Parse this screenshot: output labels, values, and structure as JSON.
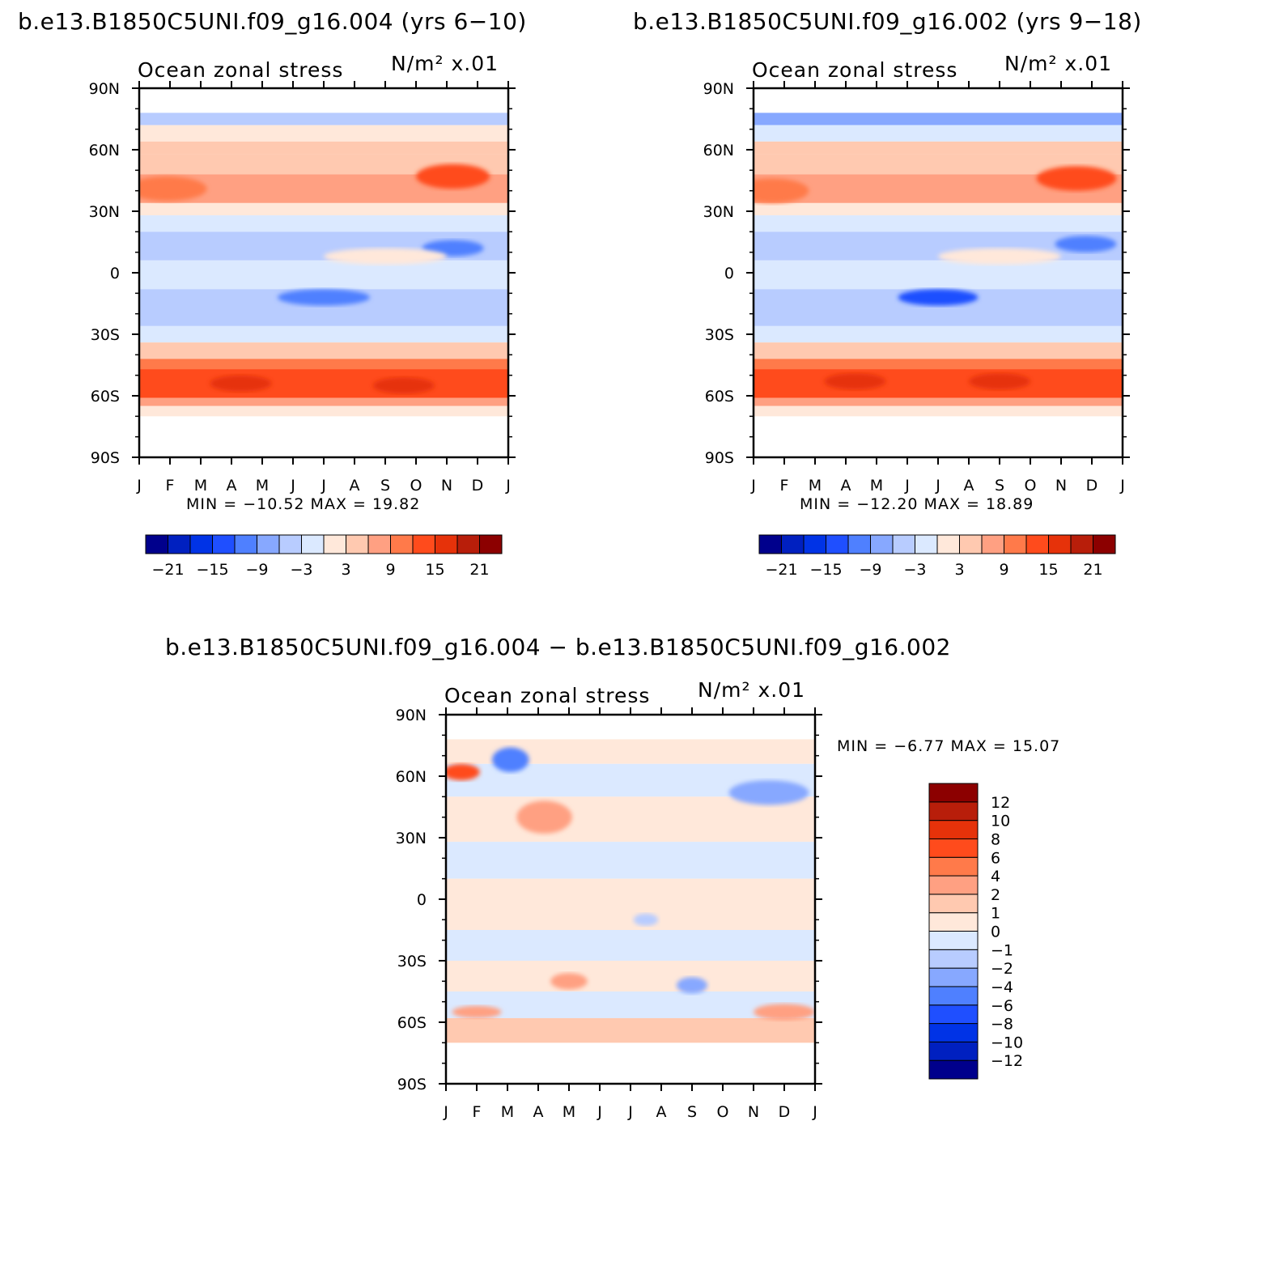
{
  "colors": {
    "scale": [
      "#00008c",
      "#0020c0",
      "#0033e6",
      "#1f4fff",
      "#4f80ff",
      "#87a8ff",
      "#b8ccff",
      "#dbe9ff",
      "#ffe8da",
      "#ffc9b0",
      "#ffa082",
      "#ff7a4a",
      "#ff4b1c",
      "#e6320a",
      "#b81e0a",
      "#8c0000"
    ]
  },
  "chart_data": [
    {
      "type": "heatmap",
      "title": "b.e13.B1850C5UNI.f09_g16.004 (yrs 6−10)",
      "subtitle_left": "Ocean zonal stress",
      "subtitle_right": "N/m² x.01",
      "x": [
        "J",
        "F",
        "M",
        "A",
        "M",
        "J",
        "J",
        "A",
        "S",
        "O",
        "N",
        "D",
        "J"
      ],
      "y": [
        "90N",
        "60N",
        "30N",
        "0",
        "30S",
        "60S",
        "90S"
      ],
      "ylim": [
        -90,
        90
      ],
      "min_max": "MIN = −10.52 MAX =  19.82",
      "min": -10.52,
      "max": 19.82,
      "colorbar_ticks": [
        "−21",
        "−15",
        "−9",
        "−3",
        "3",
        "9",
        "15",
        "21"
      ],
      "colorbar_levels": [
        -21,
        -18,
        -15,
        -12,
        -9,
        -6,
        -3,
        0,
        3,
        6,
        9,
        12,
        15,
        18,
        21
      ],
      "bands": [
        {
          "lat_top": 78,
          "lat_bot": 72,
          "val": -5
        },
        {
          "lat_top": 72,
          "lat_bot": 64,
          "val": 1
        },
        {
          "lat_top": 64,
          "lat_bot": 58,
          "val": 5
        },
        {
          "lat_top": 58,
          "lat_bot": 48,
          "val": 6
        },
        {
          "lat_top": 48,
          "lat_bot": 34,
          "val": 9
        },
        {
          "lat_top": 34,
          "lat_bot": 28,
          "val": 2
        },
        {
          "lat_top": 28,
          "lat_bot": 20,
          "val": -2
        },
        {
          "lat_top": 20,
          "lat_bot": 6,
          "val": -5
        },
        {
          "lat_top": 6,
          "lat_bot": 0,
          "val": -1
        },
        {
          "lat_top": 0,
          "lat_bot": -8,
          "val": -1
        },
        {
          "lat_top": -8,
          "lat_bot": -26,
          "val": -5
        },
        {
          "lat_top": -26,
          "lat_bot": -34,
          "val": -2
        },
        {
          "lat_top": -34,
          "lat_bot": -42,
          "val": 5
        },
        {
          "lat_top": -42,
          "lat_bot": -47,
          "val": 10
        },
        {
          "lat_top": -47,
          "lat_bot": -61,
          "val": 15
        },
        {
          "lat_top": -61,
          "lat_bot": -65,
          "val": 7
        },
        {
          "lat_top": -65,
          "lat_bot": -70,
          "val": 1
        }
      ],
      "blobs": [
        {
          "month": 0.9,
          "lat": 41,
          "rm": 1.3,
          "rl": 6,
          "val": 12
        },
        {
          "month": 10.2,
          "lat": 47,
          "rm": 1.2,
          "rl": 6,
          "val": 15
        },
        {
          "month": 3.3,
          "lat": -54,
          "rm": 1.0,
          "rl": 4,
          "val": 18
        },
        {
          "month": 8.6,
          "lat": -55,
          "rm": 1.0,
          "rl": 4,
          "val": 18
        },
        {
          "month": 10.2,
          "lat": 12,
          "rm": 1.0,
          "rl": 4,
          "val": -9
        },
        {
          "month": 6.0,
          "lat": -12,
          "rm": 1.5,
          "rl": 4,
          "val": -9
        },
        {
          "month": 8.0,
          "lat": 8,
          "rm": 2.0,
          "rl": 4,
          "val": 2
        }
      ]
    },
    {
      "type": "heatmap",
      "title": "b.e13.B1850C5UNI.f09_g16.002 (yrs 9−18)",
      "subtitle_left": "Ocean zonal stress",
      "subtitle_right": "N/m² x.01",
      "x": [
        "J",
        "F",
        "M",
        "A",
        "M",
        "J",
        "J",
        "A",
        "S",
        "O",
        "N",
        "D",
        "J"
      ],
      "y": [
        "90N",
        "60N",
        "30N",
        "0",
        "30S",
        "60S",
        "90S"
      ],
      "ylim": [
        -90,
        90
      ],
      "min_max": "MIN = −12.20 MAX =   18.89",
      "min": -12.2,
      "max": 18.89,
      "colorbar_ticks": [
        "−21",
        "−15",
        "−9",
        "−3",
        "3",
        "9",
        "15",
        "21"
      ],
      "colorbar_levels": [
        -21,
        -18,
        -15,
        -12,
        -9,
        -6,
        -3,
        0,
        3,
        6,
        9,
        12,
        15,
        18,
        21
      ],
      "bands": [
        {
          "lat_top": 78,
          "lat_bot": 72,
          "val": -6
        },
        {
          "lat_top": 72,
          "lat_bot": 64,
          "val": -1
        },
        {
          "lat_top": 64,
          "lat_bot": 58,
          "val": 5
        },
        {
          "lat_top": 58,
          "lat_bot": 48,
          "val": 6
        },
        {
          "lat_top": 48,
          "lat_bot": 34,
          "val": 8
        },
        {
          "lat_top": 34,
          "lat_bot": 28,
          "val": 2
        },
        {
          "lat_top": 28,
          "lat_bot": 20,
          "val": -2
        },
        {
          "lat_top": 20,
          "lat_bot": 6,
          "val": -5
        },
        {
          "lat_top": 6,
          "lat_bot": 0,
          "val": -1
        },
        {
          "lat_top": 0,
          "lat_bot": -8,
          "val": -1
        },
        {
          "lat_top": -8,
          "lat_bot": -26,
          "val": -5
        },
        {
          "lat_top": -26,
          "lat_bot": -34,
          "val": -2
        },
        {
          "lat_top": -34,
          "lat_bot": -42,
          "val": 5
        },
        {
          "lat_top": -42,
          "lat_bot": -47,
          "val": 10
        },
        {
          "lat_top": -47,
          "lat_bot": -61,
          "val": 15
        },
        {
          "lat_top": -61,
          "lat_bot": -65,
          "val": 8
        },
        {
          "lat_top": -65,
          "lat_bot": -70,
          "val": 1
        }
      ],
      "blobs": [
        {
          "month": 0.6,
          "lat": 40,
          "rm": 1.2,
          "rl": 6,
          "val": 12
        },
        {
          "month": 10.5,
          "lat": 46,
          "rm": 1.3,
          "rl": 6,
          "val": 15
        },
        {
          "month": 3.3,
          "lat": -53,
          "rm": 1.0,
          "rl": 4,
          "val": 18
        },
        {
          "month": 8.0,
          "lat": -53,
          "rm": 1.0,
          "rl": 4,
          "val": 18
        },
        {
          "month": 10.8,
          "lat": 14,
          "rm": 1.0,
          "rl": 4,
          "val": -9
        },
        {
          "month": 6.0,
          "lat": -12,
          "rm": 1.3,
          "rl": 4,
          "val": -12
        },
        {
          "month": 8.0,
          "lat": 8,
          "rm": 2.0,
          "rl": 4,
          "val": 2
        }
      ]
    },
    {
      "type": "heatmap",
      "title": "b.e13.B1850C5UNI.f09_g16.004 − b.e13.B1850C5UNI.f09_g16.002",
      "subtitle_left": "Ocean zonal stress",
      "subtitle_right": "N/m² x.01",
      "x": [
        "J",
        "F",
        "M",
        "A",
        "M",
        "J",
        "J",
        "A",
        "S",
        "O",
        "N",
        "D",
        "J"
      ],
      "y": [
        "90N",
        "60N",
        "30N",
        "0",
        "30S",
        "60S",
        "90S"
      ],
      "ylim": [
        -90,
        90
      ],
      "min_max": "MIN =   −6.77 MAX =   15.07",
      "min": -6.77,
      "max": 15.07,
      "colorbar_ticks": [
        "12",
        "10",
        "8",
        "6",
        "4",
        "2",
        "1",
        "0",
        "−1",
        "−2",
        "−4",
        "−6",
        "−8",
        "−10",
        "−12"
      ],
      "colorbar_levels": [
        -12,
        -10,
        -8,
        -6,
        -4,
        -2,
        -1,
        0,
        1,
        2,
        4,
        6,
        8,
        10,
        12
      ],
      "bands": [
        {
          "lat_top": 78,
          "lat_bot": 66,
          "val": 0.5
        },
        {
          "lat_top": 66,
          "lat_bot": 50,
          "val": -0.5
        },
        {
          "lat_top": 50,
          "lat_bot": 28,
          "val": 0.5
        },
        {
          "lat_top": 28,
          "lat_bot": 10,
          "val": -0.5
        },
        {
          "lat_top": 10,
          "lat_bot": -15,
          "val": 0.5
        },
        {
          "lat_top": -15,
          "lat_bot": -30,
          "val": -0.5
        },
        {
          "lat_top": -30,
          "lat_bot": -45,
          "val": 0.5
        },
        {
          "lat_top": -45,
          "lat_bot": -58,
          "val": -0.5
        },
        {
          "lat_top": -58,
          "lat_bot": -70,
          "val": 1.5
        }
      ],
      "blobs": [
        {
          "month": 0.5,
          "lat": 62,
          "rm": 0.6,
          "rl": 4,
          "val": 7
        },
        {
          "month": 2.1,
          "lat": 68,
          "rm": 0.6,
          "rl": 6,
          "val": -5
        },
        {
          "month": 3.2,
          "lat": 40,
          "rm": 0.9,
          "rl": 8,
          "val": 3
        },
        {
          "month": 10.5,
          "lat": 52,
          "rm": 1.3,
          "rl": 6,
          "val": -3
        },
        {
          "month": 8.0,
          "lat": -42,
          "rm": 0.5,
          "rl": 4,
          "val": -3
        },
        {
          "month": 11.0,
          "lat": -55,
          "rm": 1.0,
          "rl": 4,
          "val": 3
        },
        {
          "month": 1.0,
          "lat": -55,
          "rm": 0.8,
          "rl": 3,
          "val": 3
        },
        {
          "month": 4.0,
          "lat": -40,
          "rm": 0.6,
          "rl": 4,
          "val": 3
        },
        {
          "month": 6.5,
          "lat": -10,
          "rm": 0.4,
          "rl": 3,
          "val": -1.5
        }
      ]
    }
  ]
}
